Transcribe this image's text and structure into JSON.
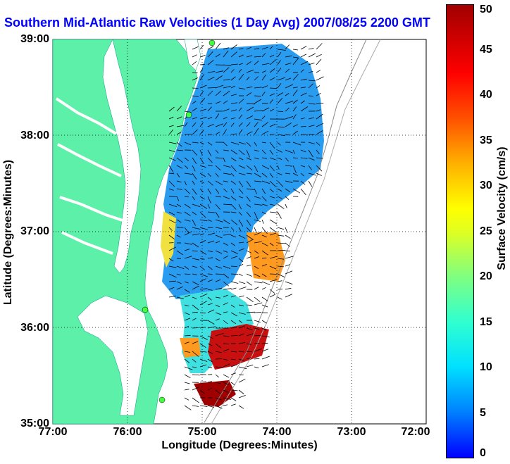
{
  "title": "Southern Mid-Atlantic Raw Velocities (1 Day Avg) 2007/08/25 2200 GMT",
  "axes": {
    "xlabel": "Longitude (Degrees:Minutes)",
    "ylabel": "Latitude (Degrees:Minutes)",
    "x_ticks": [
      "77:00",
      "76:00",
      "75:00",
      "74:00",
      "73:00",
      "72:00"
    ],
    "y_ticks": [
      "39:00",
      "38:00",
      "37:00",
      "36:00",
      "35:00"
    ],
    "x_range": [
      -77,
      -72
    ],
    "y_range": [
      35,
      39
    ],
    "grid": true
  },
  "colorbar": {
    "label": "Surface Velocity (cm/s)",
    "ticks": [
      "50",
      "45",
      "40",
      "35",
      "30",
      "25",
      "20",
      "15",
      "10",
      "5",
      "0"
    ],
    "range": [
      0,
      50
    ]
  },
  "colors": {
    "land": "#5cf0a8",
    "water": "#ffffff",
    "title": "#0000ff"
  }
}
